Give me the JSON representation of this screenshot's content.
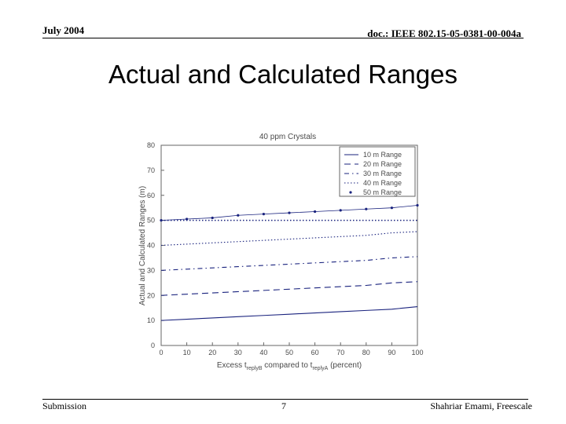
{
  "header": {
    "left": "July 2004",
    "right": "doc.: IEEE 802.15-05-0381-00-004a"
  },
  "slide": {
    "title": "Actual and Calculated Ranges"
  },
  "footer": {
    "left": "Submission",
    "page": "7",
    "right": "Shahriar Emami, Freescale"
  },
  "chart_data": {
    "type": "line",
    "title": "40 ppm Crystals",
    "xlabel": "Excess t_replyB compared to t_replyA (percent)",
    "xlabel_parts": {
      "before": "Excess t",
      "sub1": "replyB",
      "mid": " compared to t",
      "sub2": "replyA",
      "after": " (percent)"
    },
    "ylabel": "Actual and Calculated Ranges (m)",
    "xlim": [
      0,
      100
    ],
    "ylim": [
      0,
      80
    ],
    "xticks": [
      0,
      10,
      20,
      30,
      40,
      50,
      60,
      70,
      80,
      90,
      100
    ],
    "yticks": [
      0,
      10,
      20,
      30,
      40,
      50,
      60,
      70,
      80
    ],
    "legend_position": "top-right",
    "x": [
      0,
      10,
      20,
      30,
      40,
      50,
      60,
      70,
      80,
      90,
      100
    ],
    "series": [
      {
        "name": "10 m Range",
        "style": "solid",
        "values": [
          10,
          10.5,
          11,
          11.5,
          12,
          12.5,
          13,
          13.5,
          14,
          14.5,
          15.5
        ]
      },
      {
        "name": "20 m Range",
        "style": "dashed",
        "values": [
          20,
          20.5,
          21,
          21.5,
          22,
          22.5,
          23,
          23.5,
          24,
          25,
          25.5
        ]
      },
      {
        "name": "30 m Range",
        "style": "dashdot",
        "values": [
          30,
          30.5,
          31,
          31.5,
          32,
          32.5,
          33,
          33.5,
          34,
          35,
          35.5
        ]
      },
      {
        "name": "40 m Range",
        "style": "dotted",
        "values": [
          40,
          40.5,
          41,
          41.5,
          42,
          42.5,
          43,
          43.5,
          44,
          45,
          45.5
        ]
      },
      {
        "name": "50 m Range",
        "style": "markers",
        "values": [
          50,
          50.5,
          51,
          52,
          52.5,
          53,
          53.5,
          54,
          54.5,
          55,
          56
        ]
      }
    ],
    "reference_line": {
      "style": "dotted",
      "values": [
        50,
        50,
        50,
        50,
        50,
        50,
        50,
        50,
        50,
        50,
        50
      ]
    }
  }
}
